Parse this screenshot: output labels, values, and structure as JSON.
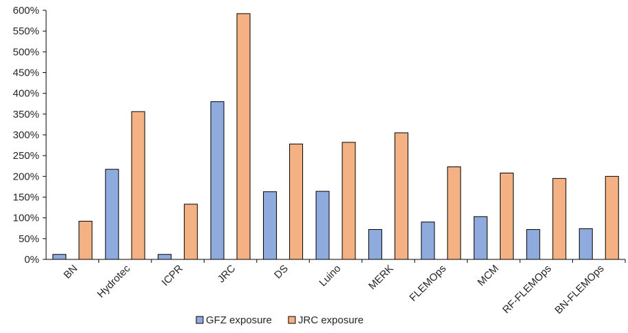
{
  "chart_data": {
    "type": "bar",
    "categories": [
      "BN",
      "Hydrotec",
      "ICPR",
      "JRC",
      "DS",
      "Luino",
      "MERK",
      "FLEMOps",
      "MCM",
      "RF-FLEMOps",
      "BN-FLEMOps"
    ],
    "series": [
      {
        "name": "GFZ exposure",
        "color": "#8faadc",
        "values": [
          12,
          217,
          12,
          380,
          163,
          164,
          72,
          90,
          103,
          72,
          74
        ]
      },
      {
        "name": "JRC exposure",
        "color": "#f4b183",
        "values": [
          92,
          356,
          133,
          592,
          278,
          282,
          305,
          223,
          208,
          195,
          200
        ]
      }
    ],
    "y_ticks": [
      "0%",
      "50%",
      "100%",
      "150%",
      "200%",
      "250%",
      "300%",
      "350%",
      "400%",
      "450%",
      "500%",
      "550%",
      "600%"
    ],
    "ylim": [
      0,
      600
    ],
    "y_unit": "%",
    "grid": false,
    "legend_position": "bottom",
    "title": "",
    "xlabel": "",
    "ylabel": ""
  }
}
